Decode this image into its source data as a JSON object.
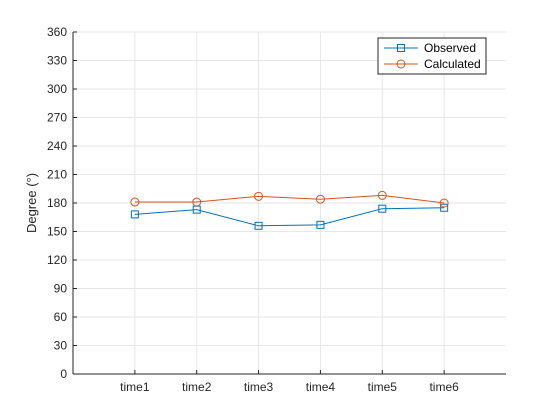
{
  "chart_data": {
    "type": "line",
    "title": "",
    "xlabel": "",
    "ylabel": "Degree (°)",
    "categories": [
      "time1",
      "time2",
      "time3",
      "time4",
      "time5",
      "time6"
    ],
    "ylim": [
      0,
      360
    ],
    "yticks": [
      0,
      30,
      60,
      90,
      120,
      150,
      180,
      210,
      240,
      270,
      300,
      330,
      360
    ],
    "grid": true,
    "legend_position": "top-right",
    "series": [
      {
        "name": "Observed",
        "marker": "square",
        "color": "#0072BD",
        "values": [
          168,
          173,
          156,
          157,
          174,
          175
        ]
      },
      {
        "name": "Calculated",
        "marker": "circle",
        "color": "#D95319",
        "values": [
          181,
          181,
          187,
          184,
          188,
          180
        ]
      }
    ]
  }
}
